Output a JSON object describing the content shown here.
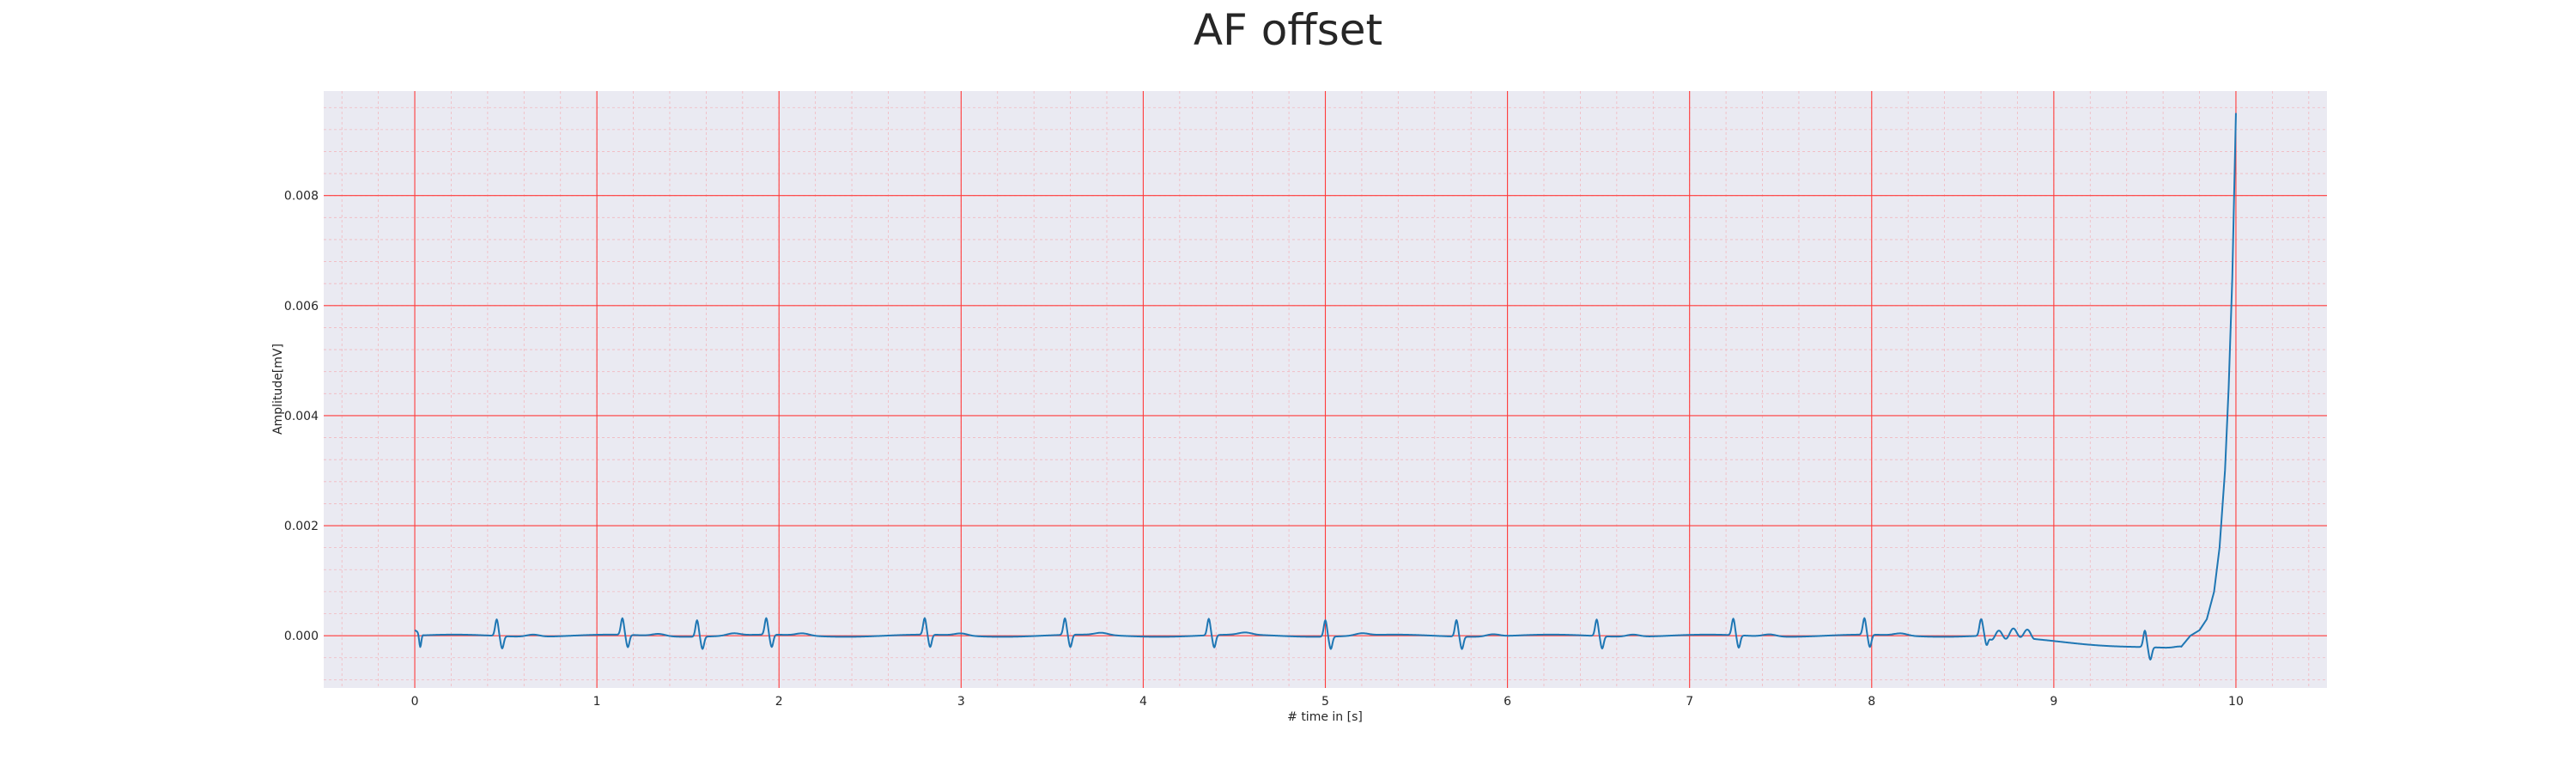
{
  "chart_data": {
    "type": "line",
    "title": "AF offset",
    "xlabel": "# time in [s]",
    "ylabel": "Amplitude[mV]",
    "xlim": [
      -0.5,
      10.5
    ],
    "ylim": [
      -0.00095,
      0.0099
    ],
    "xticks": [
      0,
      1,
      2,
      3,
      4,
      5,
      6,
      7,
      8,
      9,
      10
    ],
    "xtick_labels": [
      "0",
      "1",
      "2",
      "3",
      "4",
      "5",
      "6",
      "7",
      "8",
      "9",
      "10"
    ],
    "yticks": [
      0.0,
      0.002,
      0.004,
      0.006,
      0.008
    ],
    "ytick_labels": [
      "0.000",
      "0.002",
      "0.004",
      "0.006",
      "0.008"
    ],
    "grid": true,
    "minor_grid": true,
    "legend": "none",
    "qrs_times": [
      0.45,
      1.14,
      1.55,
      1.93,
      2.8,
      3.57,
      4.36,
      5.0,
      5.72,
      6.49,
      7.24,
      7.96,
      8.6,
      9.5
    ],
    "qrs_amplitude": 0.0003,
    "series": [
      {
        "color": "#1f77b4",
        "x": [
          0.0,
          0.03,
          0.06,
          0.1,
          0.2,
          0.3,
          0.4,
          0.45,
          0.5,
          0.6,
          0.8,
          1.0,
          1.14,
          1.2,
          1.4,
          1.55,
          1.7,
          1.93,
          2.0,
          2.4,
          2.8,
          2.9,
          3.2,
          3.57,
          3.7,
          4.0,
          4.36,
          4.5,
          4.8,
          5.0,
          5.1,
          5.4,
          5.72,
          5.9,
          6.2,
          6.49,
          6.6,
          6.9,
          7.24,
          7.4,
          7.7,
          7.96,
          8.2,
          8.5,
          8.6,
          8.7,
          8.8,
          8.9,
          9.0,
          9.1,
          9.2,
          9.3,
          9.4,
          9.5,
          9.55,
          9.6,
          9.65,
          9.7,
          9.75,
          9.8,
          9.84,
          9.88,
          9.91,
          9.94,
          9.96,
          9.98,
          10.0
        ],
        "y": [
          0.0001,
          -0.00025,
          0.0,
          2e-05,
          3e-05,
          0.0,
          0.0,
          0.0002,
          -0.00012,
          2e-05,
          0.0,
          0.0,
          0.0003,
          -0.00025,
          5e-05,
          0.00025,
          -0.0002,
          0.00022,
          -0.0002,
          5e-05,
          0.0003,
          -0.00025,
          0.0,
          0.00035,
          -0.0002,
          2e-05,
          0.00025,
          -0.00015,
          2e-05,
          0.00035,
          -0.0002,
          2e-05,
          0.00025,
          -0.0002,
          2e-05,
          0.00025,
          -0.0001,
          2e-05,
          0.00028,
          -0.0001,
          2e-05,
          0.00028,
          -0.0001,
          5e-05,
          0.0003,
          -0.0002,
          0.0001,
          0.0001,
          -0.0001,
          -0.0001,
          -0.0002,
          -0.0002,
          -0.0003,
          0.0001,
          -0.0004,
          -0.0002,
          -0.0003,
          -0.0002,
          0.0,
          0.0001,
          0.0003,
          0.0008,
          0.0016,
          0.003,
          0.0045,
          0.0065,
          0.0095
        ]
      }
    ]
  }
}
